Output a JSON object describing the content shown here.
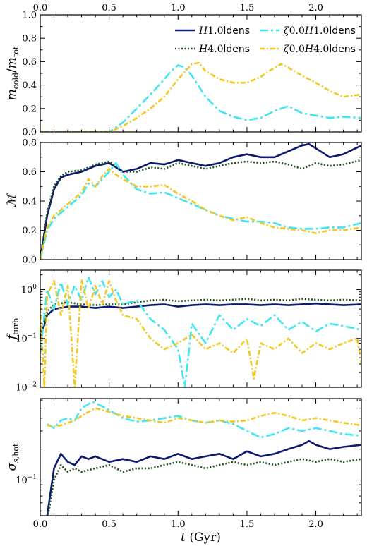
{
  "chart_data": {
    "type": "line",
    "shared_x": {
      "label": "t (Gyr)",
      "range": [
        0,
        2.33
      ],
      "ticks": [
        0.0,
        0.5,
        1.0,
        1.5,
        2.0
      ],
      "tick_labels": [
        "0.0",
        "0.5",
        "1.0",
        "1.5",
        "2.0"
      ]
    },
    "top_axis_ticks": [
      "0.0",
      "0.5",
      "1.0",
      "1.5",
      "2.0"
    ],
    "series_styles": [
      {
        "key": "H1",
        "color": "#0c1a6e",
        "dash": "none",
        "width": 2.6
      },
      {
        "key": "z0H1",
        "color": "#3ee6f0",
        "dash": "12,4,3,4",
        "width": 2.6
      },
      {
        "key": "H4",
        "color": "#1b4d1b",
        "dash": "2,2.5",
        "width": 2.6
      },
      {
        "key": "z0H4",
        "color": "#f0c81e",
        "dash": "7,3,2,3",
        "width": 2.6
      }
    ],
    "legend": {
      "placement": "top-right",
      "entries": [
        {
          "key": "H1",
          "label": "H1.0ldens"
        },
        {
          "key": "z0H1",
          "label": "ζ0.0H1.0ldens"
        },
        {
          "key": "H4",
          "label": "H4.0ldens"
        },
        {
          "key": "z0H4",
          "label": "ζ0.0H4.0ldens"
        }
      ]
    },
    "panels": [
      {
        "ylabel": "m_cold/m_tot",
        "scale": "linear",
        "ylim": [
          0,
          1.0
        ],
        "ticks": [
          0.0,
          0.2,
          0.4,
          0.6,
          0.8,
          1.0
        ],
        "tick_labels": [
          "0.0",
          "0.2",
          "0.4",
          "0.6",
          "0.8",
          "1.0"
        ],
        "series": [
          {
            "key": "z0H1",
            "x": [
              0,
              0.5,
              0.6,
              0.7,
              0.8,
              0.9,
              0.95,
              1.0,
              1.05,
              1.1,
              1.2,
              1.3,
              1.4,
              1.5,
              1.6,
              1.7,
              1.8,
              1.9,
              2.0,
              2.1,
              2.2,
              2.33
            ],
            "y": [
              0,
              0,
              0.08,
              0.2,
              0.32,
              0.45,
              0.52,
              0.57,
              0.55,
              0.48,
              0.3,
              0.18,
              0.13,
              0.1,
              0.12,
              0.18,
              0.22,
              0.16,
              0.14,
              0.12,
              0.13,
              0.12
            ]
          },
          {
            "key": "z0H4",
            "x": [
              0,
              0.5,
              0.6,
              0.7,
              0.8,
              0.9,
              1.0,
              1.1,
              1.15,
              1.2,
              1.3,
              1.4,
              1.5,
              1.6,
              1.7,
              1.75,
              1.8,
              1.9,
              2.0,
              2.1,
              2.2,
              2.33
            ],
            "y": [
              0,
              0,
              0.05,
              0.12,
              0.2,
              0.3,
              0.45,
              0.58,
              0.59,
              0.52,
              0.45,
              0.42,
              0.42,
              0.47,
              0.55,
              0.58,
              0.55,
              0.48,
              0.42,
              0.35,
              0.3,
              0.32
            ]
          }
        ]
      },
      {
        "ylabel": "M",
        "scale": "linear",
        "ylim": [
          0,
          0.8
        ],
        "ticks": [
          0.0,
          0.2,
          0.4,
          0.6,
          0.8
        ],
        "tick_labels": [
          "0.0",
          "0.2",
          "0.4",
          "0.6",
          "0.8"
        ],
        "series": [
          {
            "key": "H1",
            "x": [
              0,
              0.05,
              0.1,
              0.15,
              0.2,
              0.3,
              0.4,
              0.5,
              0.55,
              0.6,
              0.7,
              0.8,
              0.9,
              1.0,
              1.1,
              1.2,
              1.3,
              1.4,
              1.5,
              1.6,
              1.7,
              1.8,
              1.9,
              1.95,
              2.0,
              2.1,
              2.2,
              2.33
            ],
            "y": [
              0,
              0.3,
              0.48,
              0.56,
              0.58,
              0.6,
              0.64,
              0.66,
              0.63,
              0.6,
              0.62,
              0.66,
              0.65,
              0.68,
              0.66,
              0.64,
              0.66,
              0.7,
              0.72,
              0.7,
              0.7,
              0.74,
              0.78,
              0.79,
              0.76,
              0.7,
              0.72,
              0.78
            ]
          },
          {
            "key": "H4",
            "x": [
              0,
              0.05,
              0.1,
              0.15,
              0.2,
              0.3,
              0.4,
              0.5,
              0.55,
              0.6,
              0.7,
              0.8,
              0.9,
              1.0,
              1.1,
              1.2,
              1.3,
              1.4,
              1.5,
              1.6,
              1.7,
              1.8,
              1.9,
              2.0,
              2.1,
              2.2,
              2.33
            ],
            "y": [
              0,
              0.32,
              0.5,
              0.57,
              0.6,
              0.61,
              0.65,
              0.67,
              0.64,
              0.6,
              0.6,
              0.63,
              0.62,
              0.66,
              0.64,
              0.62,
              0.64,
              0.66,
              0.67,
              0.66,
              0.67,
              0.65,
              0.62,
              0.66,
              0.64,
              0.65,
              0.68
            ]
          },
          {
            "key": "z0H1",
            "x": [
              0,
              0.05,
              0.1,
              0.2,
              0.3,
              0.35,
              0.4,
              0.45,
              0.5,
              0.55,
              0.6,
              0.7,
              0.8,
              0.9,
              1.0,
              1.1,
              1.2,
              1.3,
              1.4,
              1.5,
              1.6,
              1.7,
              1.8,
              1.9,
              2.0,
              2.1,
              2.2,
              2.33
            ],
            "y": [
              0,
              0.2,
              0.28,
              0.36,
              0.44,
              0.52,
              0.5,
              0.55,
              0.6,
              0.66,
              0.58,
              0.48,
              0.45,
              0.46,
              0.42,
              0.38,
              0.34,
              0.3,
              0.28,
              0.26,
              0.26,
              0.25,
              0.22,
              0.21,
              0.21,
              0.22,
              0.22,
              0.25
            ]
          },
          {
            "key": "z0H4",
            "x": [
              0,
              0.05,
              0.1,
              0.2,
              0.3,
              0.35,
              0.4,
              0.45,
              0.5,
              0.55,
              0.6,
              0.7,
              0.8,
              0.9,
              1.0,
              1.1,
              1.2,
              1.3,
              1.4,
              1.5,
              1.6,
              1.7,
              1.8,
              1.9,
              2.0,
              2.1,
              2.2,
              2.33
            ],
            "y": [
              0,
              0.22,
              0.3,
              0.38,
              0.46,
              0.55,
              0.5,
              0.57,
              0.62,
              0.58,
              0.55,
              0.5,
              0.5,
              0.51,
              0.45,
              0.4,
              0.34,
              0.3,
              0.27,
              0.29,
              0.25,
              0.22,
              0.21,
              0.2,
              0.18,
              0.2,
              0.2,
              0.22
            ]
          }
        ]
      },
      {
        "ylabel": "f_turb",
        "scale": "log",
        "ylim": [
          0.01,
          2.5
        ],
        "ticks": [
          0.01,
          0.1,
          1.0
        ],
        "tick_labels": [
          "10^-2",
          "10^-1",
          "10^0"
        ],
        "series": [
          {
            "key": "H1",
            "x": [
              0,
              0.05,
              0.1,
              0.2,
              0.3,
              0.4,
              0.5,
              0.6,
              0.7,
              0.8,
              0.9,
              1.0,
              1.1,
              1.2,
              1.3,
              1.4,
              1.5,
              1.6,
              1.7,
              1.8,
              1.9,
              2.0,
              2.1,
              2.2,
              2.33
            ],
            "y": [
              0.1,
              0.3,
              0.4,
              0.45,
              0.45,
              0.42,
              0.45,
              0.42,
              0.45,
              0.48,
              0.5,
              0.45,
              0.48,
              0.5,
              0.48,
              0.5,
              0.5,
              0.48,
              0.5,
              0.48,
              0.5,
              0.52,
              0.5,
              0.48,
              0.5
            ]
          },
          {
            "key": "H4",
            "x": [
              0,
              0.05,
              0.1,
              0.2,
              0.3,
              0.4,
              0.5,
              0.6,
              0.7,
              0.8,
              0.9,
              1.0,
              1.1,
              1.2,
              1.3,
              1.4,
              1.5,
              1.6,
              1.7,
              1.8,
              1.9,
              2.0,
              2.1,
              2.2,
              2.33
            ],
            "y": [
              0.12,
              0.35,
              0.5,
              0.55,
              0.5,
              0.48,
              0.5,
              0.5,
              0.55,
              0.6,
              0.62,
              0.58,
              0.6,
              0.62,
              0.6,
              0.62,
              0.65,
              0.6,
              0.62,
              0.6,
              0.65,
              0.62,
              0.6,
              0.62,
              0.6
            ]
          },
          {
            "key": "z0H1",
            "x": [
              0,
              0.05,
              0.1,
              0.15,
              0.2,
              0.25,
              0.3,
              0.35,
              0.4,
              0.45,
              0.5,
              0.55,
              0.6,
              0.7,
              0.8,
              0.9,
              1.0,
              1.05,
              1.1,
              1.2,
              1.3,
              1.4,
              1.5,
              1.6,
              1.7,
              1.8,
              1.9,
              2.0,
              2.1,
              2.2,
              2.33
            ],
            "y": [
              0.05,
              1.0,
              0.4,
              1.4,
              0.5,
              1.2,
              0.6,
              1.8,
              0.8,
              1.5,
              0.7,
              1.0,
              0.5,
              0.6,
              0.25,
              0.15,
              0.06,
              0.01,
              0.2,
              0.08,
              0.3,
              0.15,
              0.25,
              0.18,
              0.3,
              0.15,
              0.22,
              0.14,
              0.2,
              0.18,
              0.15
            ]
          },
          {
            "key": "z0H4",
            "x": [
              0,
              0.03,
              0.05,
              0.1,
              0.15,
              0.2,
              0.25,
              0.3,
              0.35,
              0.4,
              0.45,
              0.5,
              0.55,
              0.6,
              0.7,
              0.8,
              0.9,
              1.0,
              1.1,
              1.2,
              1.3,
              1.4,
              1.5,
              1.55,
              1.6,
              1.7,
              1.8,
              1.9,
              2.0,
              2.1,
              2.2,
              2.3,
              2.33
            ],
            "y": [
              0.5,
              0.01,
              0.8,
              1.5,
              0.3,
              1.2,
              0.01,
              1.6,
              0.4,
              1.2,
              0.5,
              1.5,
              0.6,
              0.3,
              0.25,
              0.1,
              0.06,
              0.08,
              0.12,
              0.06,
              0.08,
              0.05,
              0.1,
              0.015,
              0.08,
              0.06,
              0.1,
              0.05,
              0.08,
              0.06,
              0.08,
              0.1,
              0.03
            ]
          }
        ]
      },
      {
        "ylabel": "σ_s,hot",
        "scale": "log",
        "ylim": [
          0.045,
          0.62
        ],
        "ticks": [
          0.1
        ],
        "tick_labels": [
          "10^-1"
        ],
        "series": [
          {
            "key": "H1",
            "x": [
              0.05,
              0.1,
              0.15,
              0.2,
              0.25,
              0.3,
              0.35,
              0.4,
              0.5,
              0.6,
              0.7,
              0.8,
              0.9,
              1.0,
              1.1,
              1.2,
              1.3,
              1.4,
              1.5,
              1.6,
              1.7,
              1.8,
              1.9,
              1.95,
              2.0,
              2.1,
              2.2,
              2.33
            ],
            "y": [
              0.045,
              0.13,
              0.18,
              0.15,
              0.14,
              0.17,
              0.16,
              0.17,
              0.15,
              0.16,
              0.15,
              0.17,
              0.16,
              0.18,
              0.16,
              0.17,
              0.18,
              0.16,
              0.19,
              0.17,
              0.18,
              0.2,
              0.22,
              0.24,
              0.22,
              0.2,
              0.21,
              0.22
            ]
          },
          {
            "key": "H4",
            "x": [
              0.05,
              0.1,
              0.15,
              0.2,
              0.25,
              0.3,
              0.4,
              0.5,
              0.6,
              0.7,
              0.8,
              0.9,
              1.0,
              1.1,
              1.2,
              1.3,
              1.4,
              1.5,
              1.6,
              1.7,
              1.8,
              1.9,
              2.0,
              2.1,
              2.2,
              2.33
            ],
            "y": [
              0.04,
              0.1,
              0.14,
              0.12,
              0.13,
              0.12,
              0.13,
              0.14,
              0.12,
              0.13,
              0.13,
              0.14,
              0.15,
              0.14,
              0.13,
              0.14,
              0.15,
              0.14,
              0.15,
              0.14,
              0.15,
              0.16,
              0.15,
              0.16,
              0.15,
              0.16
            ]
          },
          {
            "key": "z0H1",
            "x": [
              0.05,
              0.1,
              0.15,
              0.2,
              0.25,
              0.3,
              0.38,
              0.45,
              0.5,
              0.6,
              0.7,
              0.8,
              0.9,
              1.0,
              1.1,
              1.2,
              1.3,
              1.4,
              1.5,
              1.6,
              1.7,
              1.8,
              1.9,
              2.0,
              2.1,
              2.2,
              2.33
            ],
            "y": [
              0.35,
              0.32,
              0.38,
              0.4,
              0.38,
              0.5,
              0.58,
              0.52,
              0.48,
              0.4,
              0.37,
              0.38,
              0.4,
              0.42,
              0.38,
              0.36,
              0.38,
              0.35,
              0.3,
              0.26,
              0.28,
              0.32,
              0.3,
              0.32,
              0.3,
              0.28,
              0.27
            ]
          },
          {
            "key": "z0H4",
            "x": [
              0.05,
              0.1,
              0.15,
              0.2,
              0.25,
              0.3,
              0.4,
              0.5,
              0.6,
              0.7,
              0.8,
              0.9,
              1.0,
              1.1,
              1.2,
              1.3,
              1.4,
              1.5,
              1.6,
              1.7,
              1.8,
              1.9,
              2.0,
              2.1,
              2.2,
              2.33
            ],
            "y": [
              0.34,
              0.33,
              0.34,
              0.36,
              0.38,
              0.42,
              0.5,
              0.46,
              0.42,
              0.4,
              0.38,
              0.36,
              0.4,
              0.38,
              0.36,
              0.38,
              0.37,
              0.38,
              0.42,
              0.45,
              0.42,
              0.38,
              0.4,
              0.38,
              0.36,
              0.34
            ]
          }
        ]
      }
    ]
  }
}
